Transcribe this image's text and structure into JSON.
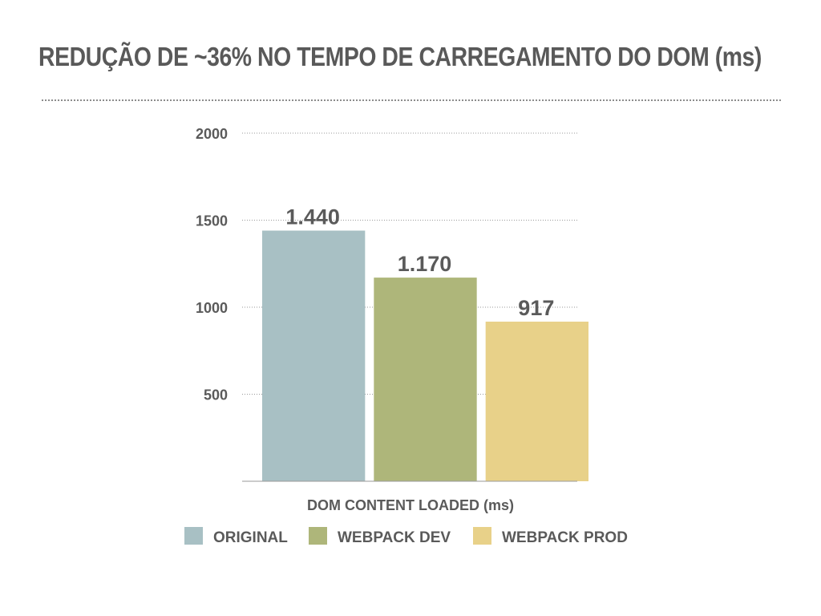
{
  "title": "REDUÇÃO DE ~36% NO TEMPO DE CARREGAMENTO DO DOM (ms)",
  "chart_data": {
    "type": "bar",
    "xlabel": "DOM CONTENT LOADED (ms)",
    "ylabel": "",
    "ylim": [
      0,
      2000
    ],
    "yticks": [
      500,
      1000,
      1500,
      2000
    ],
    "grid": true,
    "legend_position": "bottom",
    "series": [
      {
        "name": "ORIGINAL",
        "value": 1440,
        "label": "1.440",
        "color": "#a8c0c4"
      },
      {
        "name": "WEBPACK DEV",
        "value": 1170,
        "label": "1.170",
        "color": "#aeb67a"
      },
      {
        "name": "WEBPACK PROD",
        "value": 917,
        "label": "917",
        "color": "#e8d189"
      }
    ]
  }
}
